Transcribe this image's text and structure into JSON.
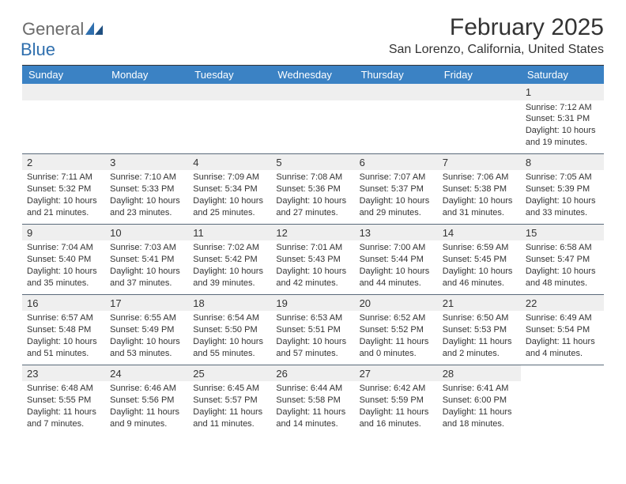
{
  "logo": {
    "general": "General",
    "blue": "Blue"
  },
  "title": "February 2025",
  "location": "San Lorenzo, California, United States",
  "style": {
    "header_bg": "#3b82c4",
    "header_text": "#ffffff",
    "stripe_bg": "#efefef",
    "text_color": "#333333",
    "divider_color": "#333333",
    "row_border": "#5a6a7a",
    "logo_gray": "#6b6b6b",
    "logo_blue": "#2f6fae"
  },
  "weekdays": [
    "Sunday",
    "Monday",
    "Tuesday",
    "Wednesday",
    "Thursday",
    "Friday",
    "Saturday"
  ],
  "weeks": [
    [
      {
        "blank": true
      },
      {
        "blank": true
      },
      {
        "blank": true
      },
      {
        "blank": true
      },
      {
        "blank": true
      },
      {
        "blank": true
      },
      {
        "n": "1",
        "sunrise": "Sunrise: 7:12 AM",
        "sunset": "Sunset: 5:31 PM",
        "day1": "Daylight: 10 hours",
        "day2": "and 19 minutes."
      }
    ],
    [
      {
        "n": "2",
        "sunrise": "Sunrise: 7:11 AM",
        "sunset": "Sunset: 5:32 PM",
        "day1": "Daylight: 10 hours",
        "day2": "and 21 minutes."
      },
      {
        "n": "3",
        "sunrise": "Sunrise: 7:10 AM",
        "sunset": "Sunset: 5:33 PM",
        "day1": "Daylight: 10 hours",
        "day2": "and 23 minutes."
      },
      {
        "n": "4",
        "sunrise": "Sunrise: 7:09 AM",
        "sunset": "Sunset: 5:34 PM",
        "day1": "Daylight: 10 hours",
        "day2": "and 25 minutes."
      },
      {
        "n": "5",
        "sunrise": "Sunrise: 7:08 AM",
        "sunset": "Sunset: 5:36 PM",
        "day1": "Daylight: 10 hours",
        "day2": "and 27 minutes."
      },
      {
        "n": "6",
        "sunrise": "Sunrise: 7:07 AM",
        "sunset": "Sunset: 5:37 PM",
        "day1": "Daylight: 10 hours",
        "day2": "and 29 minutes."
      },
      {
        "n": "7",
        "sunrise": "Sunrise: 7:06 AM",
        "sunset": "Sunset: 5:38 PM",
        "day1": "Daylight: 10 hours",
        "day2": "and 31 minutes."
      },
      {
        "n": "8",
        "sunrise": "Sunrise: 7:05 AM",
        "sunset": "Sunset: 5:39 PM",
        "day1": "Daylight: 10 hours",
        "day2": "and 33 minutes."
      }
    ],
    [
      {
        "n": "9",
        "sunrise": "Sunrise: 7:04 AM",
        "sunset": "Sunset: 5:40 PM",
        "day1": "Daylight: 10 hours",
        "day2": "and 35 minutes."
      },
      {
        "n": "10",
        "sunrise": "Sunrise: 7:03 AM",
        "sunset": "Sunset: 5:41 PM",
        "day1": "Daylight: 10 hours",
        "day2": "and 37 minutes."
      },
      {
        "n": "11",
        "sunrise": "Sunrise: 7:02 AM",
        "sunset": "Sunset: 5:42 PM",
        "day1": "Daylight: 10 hours",
        "day2": "and 39 minutes."
      },
      {
        "n": "12",
        "sunrise": "Sunrise: 7:01 AM",
        "sunset": "Sunset: 5:43 PM",
        "day1": "Daylight: 10 hours",
        "day2": "and 42 minutes."
      },
      {
        "n": "13",
        "sunrise": "Sunrise: 7:00 AM",
        "sunset": "Sunset: 5:44 PM",
        "day1": "Daylight: 10 hours",
        "day2": "and 44 minutes."
      },
      {
        "n": "14",
        "sunrise": "Sunrise: 6:59 AM",
        "sunset": "Sunset: 5:45 PM",
        "day1": "Daylight: 10 hours",
        "day2": "and 46 minutes."
      },
      {
        "n": "15",
        "sunrise": "Sunrise: 6:58 AM",
        "sunset": "Sunset: 5:47 PM",
        "day1": "Daylight: 10 hours",
        "day2": "and 48 minutes."
      }
    ],
    [
      {
        "n": "16",
        "sunrise": "Sunrise: 6:57 AM",
        "sunset": "Sunset: 5:48 PM",
        "day1": "Daylight: 10 hours",
        "day2": "and 51 minutes."
      },
      {
        "n": "17",
        "sunrise": "Sunrise: 6:55 AM",
        "sunset": "Sunset: 5:49 PM",
        "day1": "Daylight: 10 hours",
        "day2": "and 53 minutes."
      },
      {
        "n": "18",
        "sunrise": "Sunrise: 6:54 AM",
        "sunset": "Sunset: 5:50 PM",
        "day1": "Daylight: 10 hours",
        "day2": "and 55 minutes."
      },
      {
        "n": "19",
        "sunrise": "Sunrise: 6:53 AM",
        "sunset": "Sunset: 5:51 PM",
        "day1": "Daylight: 10 hours",
        "day2": "and 57 minutes."
      },
      {
        "n": "20",
        "sunrise": "Sunrise: 6:52 AM",
        "sunset": "Sunset: 5:52 PM",
        "day1": "Daylight: 11 hours",
        "day2": "and 0 minutes."
      },
      {
        "n": "21",
        "sunrise": "Sunrise: 6:50 AM",
        "sunset": "Sunset: 5:53 PM",
        "day1": "Daylight: 11 hours",
        "day2": "and 2 minutes."
      },
      {
        "n": "22",
        "sunrise": "Sunrise: 6:49 AM",
        "sunset": "Sunset: 5:54 PM",
        "day1": "Daylight: 11 hours",
        "day2": "and 4 minutes."
      }
    ],
    [
      {
        "n": "23",
        "sunrise": "Sunrise: 6:48 AM",
        "sunset": "Sunset: 5:55 PM",
        "day1": "Daylight: 11 hours",
        "day2": "and 7 minutes."
      },
      {
        "n": "24",
        "sunrise": "Sunrise: 6:46 AM",
        "sunset": "Sunset: 5:56 PM",
        "day1": "Daylight: 11 hours",
        "day2": "and 9 minutes."
      },
      {
        "n": "25",
        "sunrise": "Sunrise: 6:45 AM",
        "sunset": "Sunset: 5:57 PM",
        "day1": "Daylight: 11 hours",
        "day2": "and 11 minutes."
      },
      {
        "n": "26",
        "sunrise": "Sunrise: 6:44 AM",
        "sunset": "Sunset: 5:58 PM",
        "day1": "Daylight: 11 hours",
        "day2": "and 14 minutes."
      },
      {
        "n": "27",
        "sunrise": "Sunrise: 6:42 AM",
        "sunset": "Sunset: 5:59 PM",
        "day1": "Daylight: 11 hours",
        "day2": "and 16 minutes."
      },
      {
        "n": "28",
        "sunrise": "Sunrise: 6:41 AM",
        "sunset": "Sunset: 6:00 PM",
        "day1": "Daylight: 11 hours",
        "day2": "and 18 minutes."
      },
      {
        "blank": true,
        "white": true
      }
    ]
  ]
}
